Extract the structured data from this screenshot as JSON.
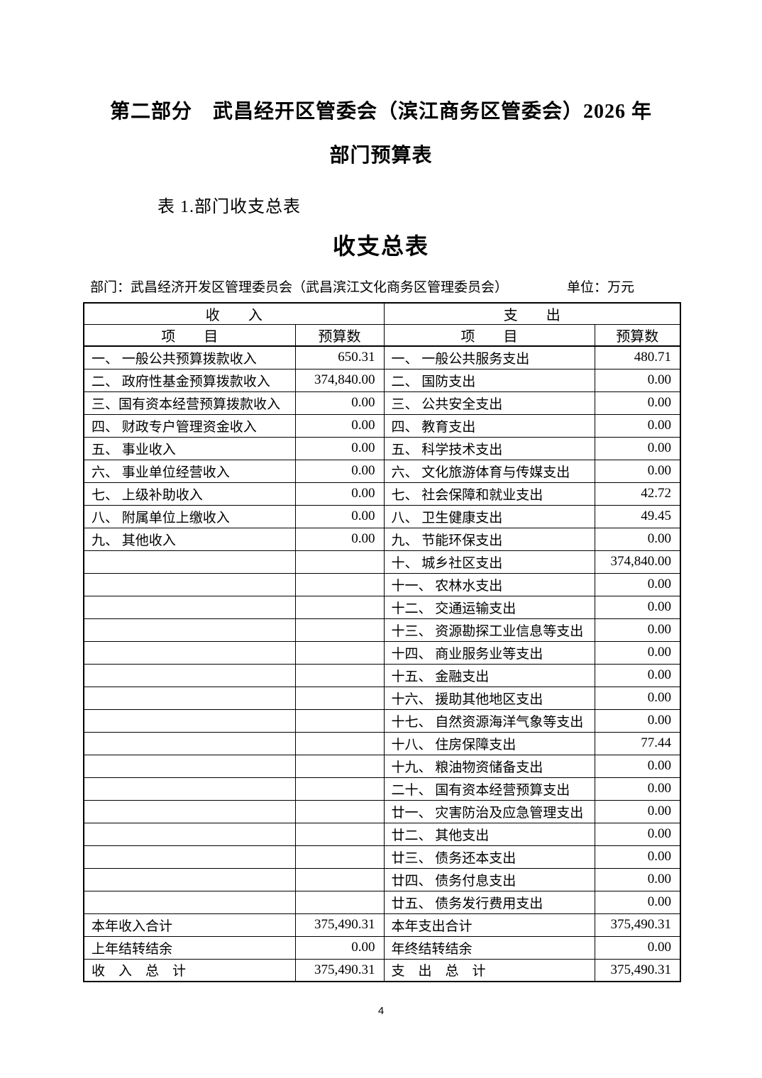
{
  "page": {
    "title_line1": "第二部分　武昌经开区管委会（滨江商务区管委会）2026 年",
    "title_line2": "部门预算表",
    "table_caption": "表 1.部门收支总表",
    "table_title": "收支总表",
    "dept_label": "部门：武昌经济开发区管理委员会（武昌滨江文化商务区管理委员会）",
    "unit_label": "单位：万元",
    "page_number": "4"
  },
  "table": {
    "income_header": "收　　入",
    "expense_header": "支　　出",
    "item_header": "项　　目",
    "budget_header": "预算数",
    "rows": [
      {
        "income_item": "一、 一般公共预算拨款收入",
        "income_value": "650.31",
        "expense_item": "一、 一般公共服务支出",
        "expense_value": "480.71"
      },
      {
        "income_item": "二、 政府性基金预算拨款收入",
        "income_value": "374,840.00",
        "expense_item": "二、 国防支出",
        "expense_value": "0.00"
      },
      {
        "income_item": "三、国有资本经营预算拨款收入",
        "income_value": "0.00",
        "expense_item": "三、 公共安全支出",
        "expense_value": "0.00"
      },
      {
        "income_item": "四、 财政专户管理资金收入",
        "income_value": "0.00",
        "expense_item": "四、 教育支出",
        "expense_value": "0.00"
      },
      {
        "income_item": "五、 事业收入",
        "income_value": "0.00",
        "expense_item": "五、 科学技术支出",
        "expense_value": "0.00"
      },
      {
        "income_item": "六、 事业单位经营收入",
        "income_value": "0.00",
        "expense_item": "六、 文化旅游体育与传媒支出",
        "expense_value": "0.00"
      },
      {
        "income_item": "七、 上级补助收入",
        "income_value": "0.00",
        "expense_item": "七、 社会保障和就业支出",
        "expense_value": "42.72"
      },
      {
        "income_item": "八、 附属单位上缴收入",
        "income_value": "0.00",
        "expense_item": "八、 卫生健康支出",
        "expense_value": "49.45"
      },
      {
        "income_item": "九、 其他收入",
        "income_value": "0.00",
        "expense_item": "九、 节能环保支出",
        "expense_value": "0.00"
      },
      {
        "income_item": "",
        "income_value": "",
        "expense_item": "十、 城乡社区支出",
        "expense_value": "374,840.00"
      },
      {
        "income_item": "",
        "income_value": "",
        "expense_item": "十一、 农林水支出",
        "expense_value": "0.00"
      },
      {
        "income_item": "",
        "income_value": "",
        "expense_item": "十二、 交通运输支出",
        "expense_value": "0.00"
      },
      {
        "income_item": "",
        "income_value": "",
        "expense_item": "十三、 资源勘探工业信息等支出",
        "expense_value": "0.00"
      },
      {
        "income_item": "",
        "income_value": "",
        "expense_item": "十四、 商业服务业等支出",
        "expense_value": "0.00"
      },
      {
        "income_item": "",
        "income_value": "",
        "expense_item": "十五、 金融支出",
        "expense_value": "0.00"
      },
      {
        "income_item": "",
        "income_value": "",
        "expense_item": "十六、 援助其他地区支出",
        "expense_value": "0.00"
      },
      {
        "income_item": "",
        "income_value": "",
        "expense_item": "十七、 自然资源海洋气象等支出",
        "expense_value": "0.00"
      },
      {
        "income_item": "",
        "income_value": "",
        "expense_item": "十八、 住房保障支出",
        "expense_value": "77.44"
      },
      {
        "income_item": "",
        "income_value": "",
        "expense_item": "十九、 粮油物资储备支出",
        "expense_value": "0.00"
      },
      {
        "income_item": "",
        "income_value": "",
        "expense_item": "二十、 国有资本经营预算支出",
        "expense_value": "0.00"
      },
      {
        "income_item": "",
        "income_value": "",
        "expense_item": "廿一、 灾害防治及应急管理支出",
        "expense_value": "0.00"
      },
      {
        "income_item": "",
        "income_value": "",
        "expense_item": "廿二、 其他支出",
        "expense_value": "0.00"
      },
      {
        "income_item": "",
        "income_value": "",
        "expense_item": "廿三、 债务还本支出",
        "expense_value": "0.00"
      },
      {
        "income_item": "",
        "income_value": "",
        "expense_item": "廿四、 债务付息支出",
        "expense_value": "0.00"
      },
      {
        "income_item": "",
        "income_value": "",
        "expense_item": "廿五、 债务发行费用支出",
        "expense_value": "0.00"
      }
    ],
    "total_rows": [
      {
        "income_item": "本年收入合计",
        "income_value": "375,490.31",
        "expense_item": "本年支出合计",
        "expense_value": "375,490.31"
      },
      {
        "income_item": "上年结转结余",
        "income_value": "0.00",
        "expense_item": "年终结转结余",
        "expense_value": "0.00"
      },
      {
        "income_item": "收　入　总　计",
        "income_value": "375,490.31",
        "expense_item": "支　出　总　计",
        "expense_value": "375,490.31"
      }
    ]
  }
}
